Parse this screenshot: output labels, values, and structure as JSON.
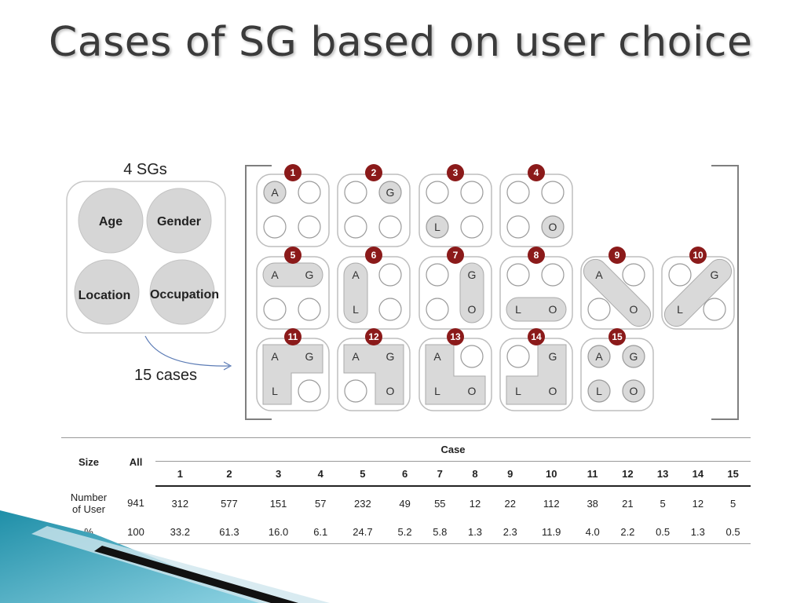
{
  "title": "Cases of SG based on user choice",
  "sg_box": {
    "heading": "4 SGs",
    "circles": [
      "Age",
      "Gender",
      "Location",
      "Occupation"
    ]
  },
  "arrow_label": "15 cases",
  "cases": [
    {
      "number": "1",
      "shape": "single",
      "labels": {
        "A": "A"
      }
    },
    {
      "number": "2",
      "shape": "single",
      "labels": {
        "G": "G"
      }
    },
    {
      "number": "3",
      "shape": "single",
      "labels": {
        "L": "L"
      }
    },
    {
      "number": "4",
      "shape": "single",
      "labels": {
        "O": "O"
      }
    },
    {
      "number": "5",
      "shape": "pair-top",
      "labels": {
        "A": "A",
        "G": "G"
      }
    },
    {
      "number": "6",
      "shape": "pair-left",
      "labels": {
        "A": "A",
        "L": "L"
      }
    },
    {
      "number": "7",
      "shape": "pair-right",
      "labels": {
        "G": "G",
        "O": "O"
      }
    },
    {
      "number": "8",
      "shape": "pair-bottom",
      "labels": {
        "L": "L",
        "O": "O"
      }
    },
    {
      "number": "9",
      "shape": "diag-AO",
      "labels": {
        "A": "A",
        "O": "O"
      }
    },
    {
      "number": "10",
      "shape": "diag-GL",
      "labels": {
        "G": "G",
        "L": "L"
      }
    },
    {
      "number": "11",
      "shape": "L-AGL",
      "labels": {
        "A": "A",
        "G": "G",
        "L": "L"
      }
    },
    {
      "number": "12",
      "shape": "L-AGO",
      "labels": {
        "A": "A",
        "G": "G",
        "O": "O"
      }
    },
    {
      "number": "13",
      "shape": "L-ALO",
      "labels": {
        "A": "A",
        "L": "L",
        "O": "O"
      }
    },
    {
      "number": "14",
      "shape": "L-GLO",
      "labels": {
        "G": "G",
        "L": "L",
        "O": "O"
      }
    },
    {
      "number": "15",
      "shape": "all",
      "labels": {
        "A": "A",
        "G": "G",
        "L": "L",
        "O": "O"
      }
    }
  ],
  "table": {
    "size_header": "Size",
    "all_header": "All",
    "case_header": "Case",
    "case_numbers": [
      "1",
      "2",
      "3",
      "4",
      "5",
      "6",
      "7",
      "8",
      "9",
      "10",
      "11",
      "12",
      "13",
      "14",
      "15"
    ],
    "rows": [
      {
        "label_line1": "Number",
        "label_line2": "of User",
        "all": "941",
        "values": [
          "312",
          "577",
          "151",
          "57",
          "232",
          "49",
          "55",
          "12",
          "22",
          "112",
          "38",
          "21",
          "5",
          "12",
          "5"
        ]
      },
      {
        "label_line1": "%",
        "label_line2": "",
        "all": "100",
        "values": [
          "33.2",
          "61.3",
          "16.0",
          "6.1",
          "24.7",
          "5.2",
          "5.8",
          "1.3",
          "2.3",
          "11.9",
          "4.0",
          "2.2",
          "0.5",
          "1.3",
          "0.5"
        ]
      }
    ]
  },
  "colors": {
    "badge": "#8b1a1a",
    "fill": "#d9d9d9",
    "title": "#3b3b3b"
  }
}
